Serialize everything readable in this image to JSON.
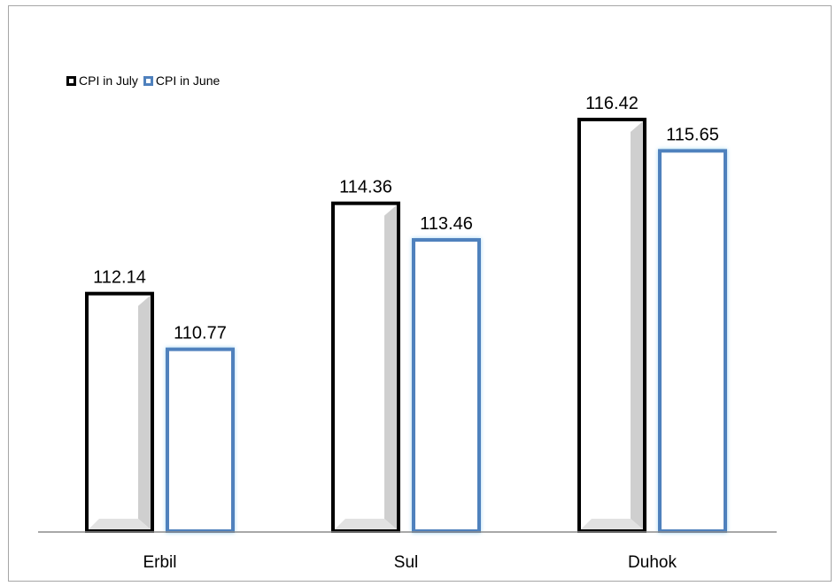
{
  "chart_data": {
    "type": "bar",
    "categories": [
      "Erbil",
      "Sul",
      "Duhok"
    ],
    "series": [
      {
        "name": "CPI in July",
        "values": [
          112.14,
          114.36,
          116.42
        ],
        "color": "#000000"
      },
      {
        "name": "CPI in June",
        "values": [
          110.77,
          113.46,
          115.65
        ],
        "color": "#4f81bd"
      }
    ],
    "value_labels": [
      [
        "112.14",
        "114.36",
        "116.42"
      ],
      [
        "110.77",
        "113.46",
        "115.65"
      ]
    ],
    "ylim": [
      106.3,
      117.4
    ],
    "legend_position": "top-left",
    "grid": false,
    "title": "",
    "xlabel": "",
    "ylabel": ""
  }
}
